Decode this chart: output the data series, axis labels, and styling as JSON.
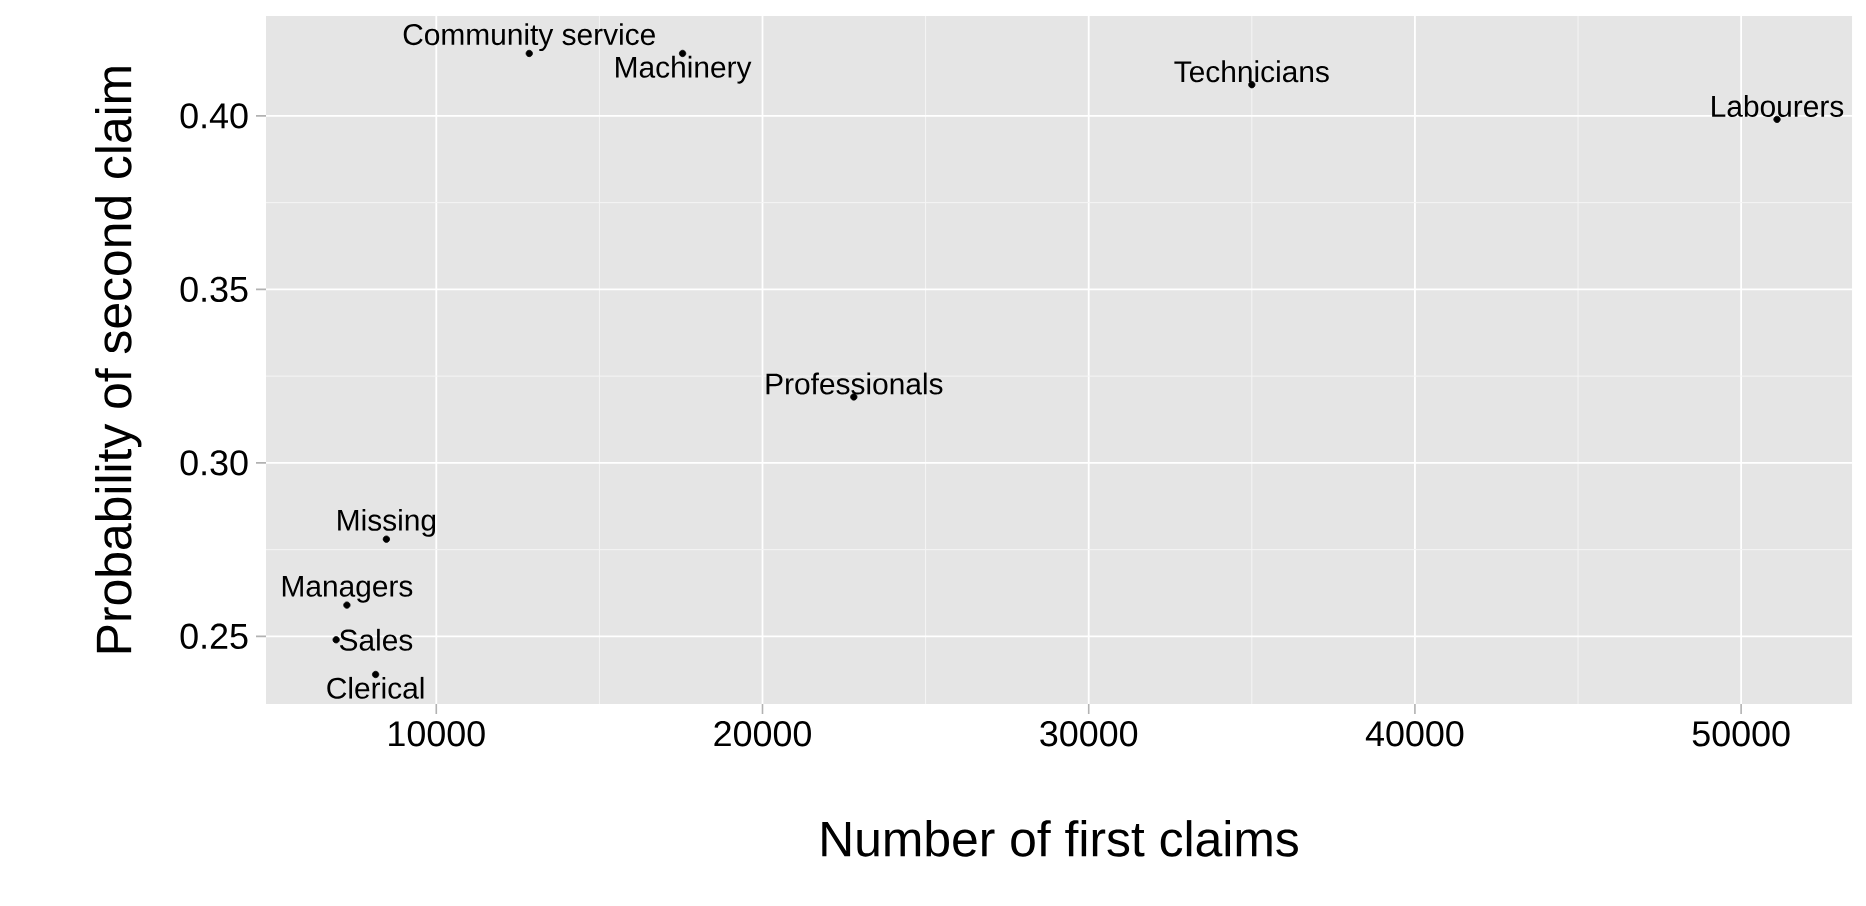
{
  "chart_data": {
    "type": "scatter",
    "xlabel": "Number of first claims",
    "ylabel": "Probability of second claim",
    "xlim": [
      4780,
      53400
    ],
    "ylim": [
      0.2305,
      0.4288
    ],
    "xticks": [
      10000,
      20000,
      30000,
      40000,
      50000
    ],
    "yticks": [
      0.25,
      {
        "value": 0.3,
        "label": "0.30"
      },
      0.35,
      {
        "value": 0.4,
        "label": "0.40"
      }
    ],
    "grid": true,
    "marker": "circle",
    "series": [
      {
        "name": "Community service",
        "color": "#000000",
        "x": [
          12850
        ],
        "values": [
          0.418
        ]
      },
      {
        "name": "Machinery",
        "color": "#000000",
        "x": [
          17550
        ],
        "values": [
          0.418
        ]
      },
      {
        "name": "Technicians",
        "color": "#000000",
        "x": [
          35000
        ],
        "values": [
          0.409
        ]
      },
      {
        "name": "Labourers",
        "color": "#000000",
        "x": [
          51100
        ],
        "values": [
          0.399
        ]
      },
      {
        "name": "Professionals",
        "color": "#000000",
        "x": [
          22800
        ],
        "values": [
          0.319
        ]
      },
      {
        "name": "Missing",
        "color": "#000000",
        "x": [
          8470
        ],
        "values": [
          0.278
        ]
      },
      {
        "name": "Managers",
        "color": "#000000",
        "x": [
          7260
        ],
        "values": [
          0.259
        ]
      },
      {
        "name": "Sales",
        "color": "#000000",
        "x": [
          6930
        ],
        "values": [
          0.249
        ]
      },
      {
        "name": "Clerical",
        "color": "#000000",
        "x": [
          8140
        ],
        "values": [
          0.239
        ]
      }
    ]
  }
}
